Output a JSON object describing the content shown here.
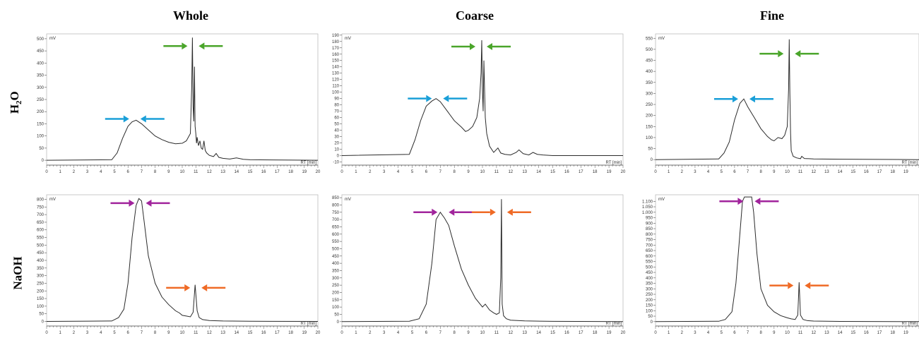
{
  "columns": [
    "Whole",
    "Coarse",
    "Fine"
  ],
  "rows": [
    "H",
    "NaOH"
  ],
  "row_h2o": {
    "main": "H",
    "sub": "2",
    "tail": "O"
  },
  "colors": {
    "cyan": "#1a9fd8",
    "green": "#4aa52a",
    "magenta": "#a1249c",
    "orange": "#ef6a25",
    "trace": "#2b2b2b"
  },
  "chart_data": [
    {
      "type": "line",
      "title": "",
      "xlabel": "RT [min]",
      "ylabel": "mV",
      "xlim": [
        0,
        20
      ],
      "ylim": [
        -20,
        520
      ],
      "xticks": [
        0,
        1,
        2,
        3,
        4,
        5,
        6,
        7,
        8,
        9,
        10,
        11,
        12,
        13,
        14,
        15,
        16,
        17,
        18,
        19,
        20
      ],
      "yticks": [
        0,
        50,
        100,
        150,
        200,
        250,
        300,
        350,
        400,
        450,
        500
      ],
      "series": [
        {
          "x": [
            0,
            4.8,
            5.2,
            5.6,
            6,
            6.3,
            6.6,
            7,
            7.5,
            8,
            8.5,
            9,
            9.5,
            10,
            10.3,
            10.6,
            10.7,
            10.75,
            10.8,
            10.85,
            10.9,
            10.95,
            11,
            11.05,
            11.1,
            11.2,
            11.3,
            11.4,
            11.5,
            11.6,
            11.7,
            11.8,
            12,
            12.3,
            12.5,
            12.7,
            13,
            13.5,
            14,
            14.5,
            15,
            20
          ],
          "y": [
            0,
            2,
            30,
            90,
            140,
            158,
            165,
            150,
            125,
            100,
            85,
            74,
            68,
            70,
            80,
            110,
            300,
            505,
            220,
            160,
            385,
            140,
            110,
            70,
            95,
            60,
            80,
            50,
            45,
            80,
            40,
            30,
            20,
            15,
            28,
            12,
            8,
            5,
            10,
            4,
            2,
            0
          ]
        }
      ],
      "annotations": [
        {
          "color": "cyan",
          "x": 6.5,
          "y": 170
        },
        {
          "color": "green",
          "x": 10.8,
          "y": 470
        }
      ]
    },
    {
      "type": "line",
      "title": "",
      "xlabel": "RT [min]",
      "ylabel": "mV",
      "xlim": [
        0,
        20
      ],
      "ylim": [
        -15,
        192
      ],
      "xticks": [
        0,
        1,
        2,
        3,
        4,
        5,
        6,
        7,
        8,
        9,
        10,
        11,
        12,
        13,
        14,
        15,
        16,
        17,
        18,
        19,
        20
      ],
      "yticks": [
        -10,
        0,
        10,
        20,
        30,
        40,
        50,
        60,
        70,
        80,
        90,
        100,
        110,
        120,
        130,
        140,
        150,
        160,
        170,
        180,
        190
      ],
      "series": [
        {
          "x": [
            0,
            4.8,
            5.2,
            5.6,
            6,
            6.4,
            6.7,
            7,
            7.5,
            8,
            8.5,
            8.8,
            9,
            9.3,
            9.6,
            9.8,
            9.9,
            9.95,
            10,
            10.05,
            10.1,
            10.2,
            10.3,
            10.5,
            10.8,
            11.1,
            11.3,
            11.6,
            12,
            12.4,
            12.6,
            12.9,
            13.3,
            13.6,
            13.9,
            14.3,
            15,
            20
          ],
          "y": [
            0,
            2,
            25,
            55,
            78,
            86,
            90,
            85,
            70,
            55,
            45,
            38,
            40,
            46,
            60,
            90,
            130,
            182,
            100,
            70,
            150,
            60,
            35,
            15,
            5,
            12,
            4,
            2,
            1,
            5,
            9,
            3,
            1,
            5,
            2,
            1,
            0,
            0
          ]
        }
      ],
      "annotations": [
        {
          "color": "cyan",
          "x": 6.8,
          "y": 90
        },
        {
          "color": "green",
          "x": 9.9,
          "y": 172
        }
      ]
    },
    {
      "type": "line",
      "title": "",
      "xlabel": "RT [min]",
      "ylabel": "mV",
      "xlim": [
        0,
        20
      ],
      "ylim": [
        -25,
        570
      ],
      "xticks": [
        0,
        1,
        2,
        3,
        4,
        5,
        6,
        7,
        8,
        9,
        10,
        11,
        12,
        13,
        14,
        15,
        16,
        17,
        18,
        19
      ],
      "yticks": [
        0,
        50,
        100,
        150,
        200,
        250,
        300,
        350,
        400,
        450,
        500,
        550
      ],
      "series": [
        {
          "x": [
            0,
            4.8,
            5.2,
            5.6,
            6,
            6.4,
            6.7,
            7,
            7.5,
            8,
            8.5,
            8.8,
            9,
            9.3,
            9.6,
            9.8,
            10,
            10.1,
            10.15,
            10.2,
            10.25,
            10.3,
            10.45,
            10.7,
            11,
            11.1,
            11.3,
            12,
            14,
            20
          ],
          "y": [
            0,
            3,
            30,
            80,
            180,
            255,
            275,
            240,
            190,
            140,
            105,
            90,
            85,
            100,
            95,
            110,
            150,
            320,
            545,
            300,
            120,
            40,
            15,
            8,
            4,
            15,
            5,
            3,
            2,
            0
          ]
        }
      ],
      "annotations": [
        {
          "color": "cyan",
          "x": 6.7,
          "y": 275
        },
        {
          "color": "green",
          "x": 10.15,
          "y": 480
        }
      ]
    },
    {
      "type": "line",
      "title": "",
      "xlabel": "RT [min]",
      "ylabel": "mV",
      "xlim": [
        0,
        20
      ],
      "ylim": [
        -30,
        830
      ],
      "xticks": [
        0,
        1,
        2,
        3,
        4,
        5,
        6,
        7,
        8,
        9,
        10,
        11,
        12,
        13,
        14,
        15,
        16,
        17,
        18,
        19,
        20
      ],
      "yticks": [
        0,
        50,
        100,
        150,
        200,
        250,
        300,
        350,
        400,
        450,
        500,
        550,
        600,
        650,
        700,
        750,
        800
      ],
      "series": [
        {
          "x": [
            0,
            4.8,
            5.3,
            5.7,
            6,
            6.3,
            6.6,
            6.8,
            7,
            7.2,
            7.5,
            8,
            8.5,
            9,
            9.5,
            9.8,
            10,
            10.3,
            10.6,
            10.8,
            10.95,
            11.1,
            11.25,
            11.5,
            12,
            13,
            15,
            20
          ],
          "y": [
            0,
            3,
            25,
            80,
            250,
            550,
            760,
            805,
            790,
            650,
            430,
            250,
            160,
            110,
            70,
            55,
            40,
            35,
            30,
            60,
            240,
            70,
            25,
            12,
            6,
            3,
            1,
            0
          ]
        }
      ],
      "annotations": [
        {
          "color": "magenta",
          "x": 6.9,
          "y": 775
        },
        {
          "color": "orange",
          "x": 11,
          "y": 220
        }
      ]
    },
    {
      "type": "line",
      "title": "",
      "xlabel": "RT [min]",
      "ylabel": "mV",
      "xlim": [
        0,
        20
      ],
      "ylim": [
        -30,
        870
      ],
      "xticks": [
        0,
        1,
        2,
        3,
        4,
        5,
        6,
        7,
        8,
        9,
        10,
        11,
        12,
        13,
        14,
        15,
        16,
        17,
        18,
        19,
        20
      ],
      "yticks": [
        0,
        50,
        100,
        150,
        200,
        250,
        300,
        350,
        400,
        450,
        500,
        550,
        600,
        650,
        700,
        750,
        800,
        850
      ],
      "series": [
        {
          "x": [
            0,
            4.8,
            5.5,
            6,
            6.4,
            6.7,
            7,
            7.3,
            7.6,
            8,
            8.5,
            9,
            9.5,
            10,
            10.2,
            10.5,
            10.8,
            11,
            11.2,
            11.3,
            11.35,
            11.4,
            11.5,
            11.7,
            12,
            13,
            15,
            20
          ],
          "y": [
            0,
            3,
            20,
            120,
            400,
            700,
            750,
            710,
            660,
            520,
            360,
            250,
            160,
            100,
            120,
            80,
            60,
            50,
            60,
            300,
            840,
            120,
            40,
            20,
            10,
            5,
            2,
            0
          ]
        }
      ],
      "annotations": [
        {
          "color": "magenta",
          "x": 7.2,
          "y": 750
        },
        {
          "color": "orange",
          "x": 11.35,
          "y": 750
        }
      ]
    },
    {
      "type": "line",
      "title": "",
      "xlabel": "RT [min]",
      "ylabel": "mV",
      "xlim": [
        0,
        20
      ],
      "ylim": [
        -40,
        1160
      ],
      "xticks": [
        0,
        1,
        2,
        3,
        4,
        5,
        6,
        7,
        8,
        9,
        10,
        11,
        12,
        13,
        14,
        15,
        16,
        17,
        18,
        19
      ],
      "yticks": [
        0,
        50,
        100,
        150,
        200,
        250,
        300,
        350,
        400,
        450,
        500,
        550,
        600,
        650,
        700,
        750,
        800,
        850,
        900,
        950,
        1000,
        1050,
        1100
      ],
      "ytick_labels": {
        "1000": "1.000",
        "1050": "1.050",
        "1100": "1.100"
      },
      "series": [
        {
          "x": [
            0,
            4.8,
            5.3,
            5.8,
            6.1,
            6.4,
            6.6,
            6.75,
            7.3,
            7.45,
            7.7,
            8,
            8.5,
            9,
            9.5,
            10,
            10.3,
            10.6,
            10.8,
            10.9,
            11,
            11.2,
            11.5,
            12,
            14,
            20
          ],
          "y": [
            0,
            3,
            20,
            90,
            350,
            800,
            1100,
            1140,
            1140,
            1000,
            620,
            300,
            150,
            90,
            55,
            35,
            25,
            20,
            60,
            360,
            60,
            20,
            10,
            5,
            2,
            0
          ]
        }
      ],
      "annotations": [
        {
          "color": "magenta",
          "x": 7.1,
          "y": 1100
        },
        {
          "color": "orange",
          "x": 10.9,
          "y": 330
        }
      ]
    }
  ]
}
